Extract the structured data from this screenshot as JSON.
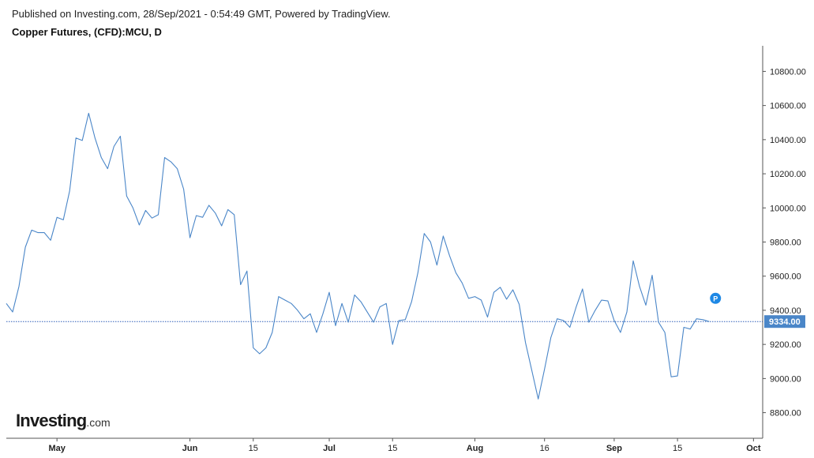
{
  "header": {
    "published": "Published on Investing.com, 28/Sep/2021 - 0:54:49 GMT, Powered by TradingView.",
    "title": "Copper Futures, (CFD):MCU, D"
  },
  "logo": {
    "main": "Investing",
    "suffix": ".com"
  },
  "colors": {
    "line": "#4a86c8",
    "axis": "#555555",
    "badge": "#4a86c8",
    "marker": "#1e88e5"
  },
  "marker_label": "P",
  "chart_data": {
    "type": "line",
    "title": "Copper Futures, (CFD):MCU, D",
    "xlabel": "",
    "ylabel": "",
    "ylim": [
      8650,
      10950
    ],
    "current_value": 9334.0,
    "current_label": "9334.00",
    "y_ticks": [
      8800,
      9000,
      9200,
      9400,
      9600,
      9800,
      10000,
      10200,
      10400,
      10600,
      10800
    ],
    "y_tick_labels": [
      "8800.00",
      "9000.00",
      "9200.00",
      "9400.00",
      "9600.00",
      "9800.00",
      "10000.00",
      "10200.00",
      "10400.00",
      "10600.00",
      "10800.00"
    ],
    "x_ticks": [
      {
        "label": "May",
        "index": 8,
        "bold": true
      },
      {
        "label": "Jun",
        "index": 29,
        "bold": true
      },
      {
        "label": "15",
        "index": 39,
        "bold": false
      },
      {
        "label": "Jul",
        "index": 51,
        "bold": true
      },
      {
        "label": "15",
        "index": 61,
        "bold": false
      },
      {
        "label": "Aug",
        "index": 74,
        "bold": true
      },
      {
        "label": "16",
        "index": 85,
        "bold": false
      },
      {
        "label": "Sep",
        "index": 96,
        "bold": true
      },
      {
        "label": "15",
        "index": 106,
        "bold": false
      },
      {
        "label": "Oct",
        "index": 118,
        "bold": true
      }
    ],
    "marker_index": 112,
    "marker_value": 9470,
    "values": [
      9440,
      9390,
      9540,
      9770,
      9870,
      9855,
      9855,
      9810,
      9945,
      9930,
      10100,
      10410,
      10395,
      10555,
      10410,
      10295,
      10230,
      10360,
      10420,
      10070,
      10000,
      9900,
      9985,
      9940,
      9960,
      10295,
      10270,
      10230,
      10110,
      9825,
      9955,
      9945,
      10015,
      9970,
      9895,
      9990,
      9960,
      9550,
      9630,
      9180,
      9145,
      9180,
      9270,
      9480,
      9460,
      9440,
      9400,
      9350,
      9380,
      9270,
      9380,
      9505,
      9310,
      9440,
      9330,
      9490,
      9450,
      9390,
      9330,
      9420,
      9440,
      9200,
      9340,
      9345,
      9450,
      9620,
      9850,
      9800,
      9665,
      9835,
      9720,
      9620,
      9560,
      9470,
      9480,
      9460,
      9360,
      9505,
      9535,
      9465,
      9520,
      9435,
      9210,
      9045,
      8880,
      9055,
      9240,
      9350,
      9340,
      9300,
      9420,
      9525,
      9330,
      9400,
      9460,
      9455,
      9340,
      9270,
      9390,
      9690,
      9540,
      9430,
      9605,
      9330,
      9270,
      9010,
      9015,
      9300,
      9290,
      9350,
      9345,
      9334
    ]
  }
}
